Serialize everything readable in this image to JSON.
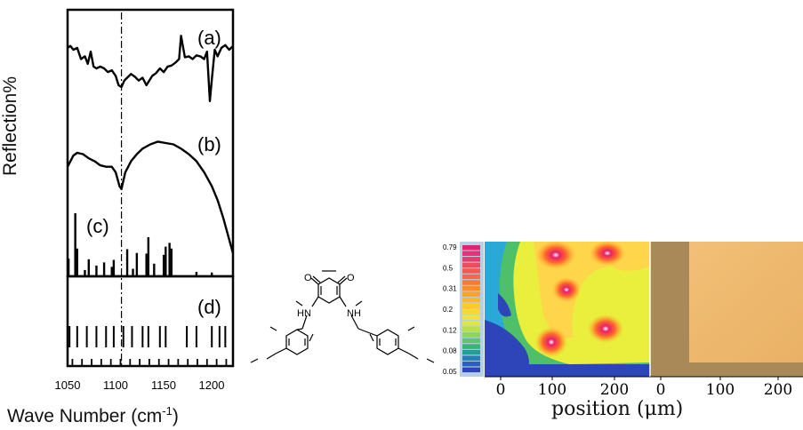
{
  "left_figure": {
    "ylabel": "Reflection%",
    "xlabel_main": "Wave Number (cm",
    "xlabel_sup": "-1",
    "xlabel_close": ")",
    "panel_labels": [
      "(a)",
      "(b)",
      "(c)",
      "(d)"
    ],
    "xticks": [
      "1050",
      "1100",
      "1150",
      "1200"
    ]
  },
  "molecule": {
    "atom_labels": [
      "O",
      "O",
      "HN",
      "NH"
    ]
  },
  "map_figure": {
    "colorbar_ticks": [
      "0.79",
      "0.5",
      "0.31",
      "0.2",
      "0.12",
      "0.08",
      "0.05"
    ],
    "map_xticks": [
      "0",
      "100",
      "200"
    ],
    "image_xticks": [
      "0",
      "100",
      "200"
    ],
    "xlabel": "position (μm)"
  },
  "chart_data": {
    "type": "line",
    "xlabel": "Wave Number (cm-1)",
    "ylabel": "Reflection%",
    "xlim": [
      1050,
      1222
    ],
    "xticks": [
      1050,
      1100,
      1150,
      1200
    ],
    "reference_line_x": 1106,
    "series": [
      {
        "name": "(a)",
        "x": [
          1050,
          1053,
          1056,
          1060,
          1064,
          1068,
          1071,
          1074,
          1077,
          1080,
          1084,
          1088,
          1092,
          1096,
          1100,
          1103,
          1106,
          1109,
          1112,
          1116,
          1120,
          1124,
          1128,
          1132,
          1135,
          1138,
          1142,
          1146,
          1150,
          1154,
          1158,
          1162,
          1166,
          1168,
          1172,
          1176,
          1180,
          1184,
          1188,
          1192,
          1195,
          1198,
          1200,
          1203,
          1206,
          1210,
          1214,
          1218,
          1222
        ],
        "y": [
          0.82,
          0.84,
          0.8,
          0.82,
          0.7,
          0.73,
          0.65,
          0.78,
          0.62,
          0.6,
          0.62,
          0.6,
          0.56,
          0.58,
          0.52,
          0.42,
          0.4,
          0.47,
          0.5,
          0.54,
          0.51,
          0.47,
          0.5,
          0.42,
          0.47,
          0.52,
          0.55,
          0.6,
          0.56,
          0.62,
          0.63,
          0.66,
          0.7,
          0.95,
          0.72,
          0.73,
          0.7,
          0.74,
          0.73,
          0.7,
          0.78,
          0.25,
          0.48,
          0.8,
          0.73,
          0.82,
          0.85,
          0.8,
          0.84
        ]
      },
      {
        "name": "(b)",
        "x": [
          1050,
          1056,
          1060,
          1066,
          1072,
          1078,
          1084,
          1090,
          1096,
          1100,
          1104,
          1106,
          1110,
          1116,
          1122,
          1128,
          1136,
          1144,
          1152,
          1160,
          1168,
          1176,
          1184,
          1192,
          1200,
          1206,
          1212,
          1216,
          1220,
          1222
        ],
        "y": [
          0.62,
          0.7,
          0.72,
          0.71,
          0.68,
          0.66,
          0.63,
          0.62,
          0.62,
          0.58,
          0.48,
          0.46,
          0.58,
          0.66,
          0.71,
          0.75,
          0.78,
          0.8,
          0.79,
          0.78,
          0.75,
          0.71,
          0.66,
          0.58,
          0.48,
          0.38,
          0.25,
          0.15,
          0.05,
          0.0
        ]
      },
      {
        "name": "(c)",
        "x": [
          1051,
          1058,
          1060,
          1068,
          1072,
          1080,
          1088,
          1096,
          1098,
          1112,
          1118,
          1122,
          1132,
          1134,
          1140,
          1150,
          1152,
          1156,
          1158,
          1184,
          1200
        ],
        "y": [
          0.28,
          1.0,
          0.44,
          0.1,
          0.27,
          0.17,
          0.22,
          0.15,
          0.26,
          0.43,
          0.12,
          0.37,
          0.36,
          0.62,
          0.2,
          0.34,
          0.47,
          0.53,
          0.44,
          0.07,
          0.06
        ]
      },
      {
        "name": "(d)",
        "x": [
          1052,
          1060,
          1070,
          1080,
          1090,
          1098,
          1108,
          1117,
          1128,
          1134,
          1146,
          1152,
          1174,
          1184,
          1200,
          1208,
          1214
        ],
        "y": [
          1,
          1,
          1,
          1,
          1,
          1,
          1,
          1,
          1,
          1,
          1,
          1,
          1,
          1,
          1,
          1,
          1
        ]
      }
    ]
  }
}
